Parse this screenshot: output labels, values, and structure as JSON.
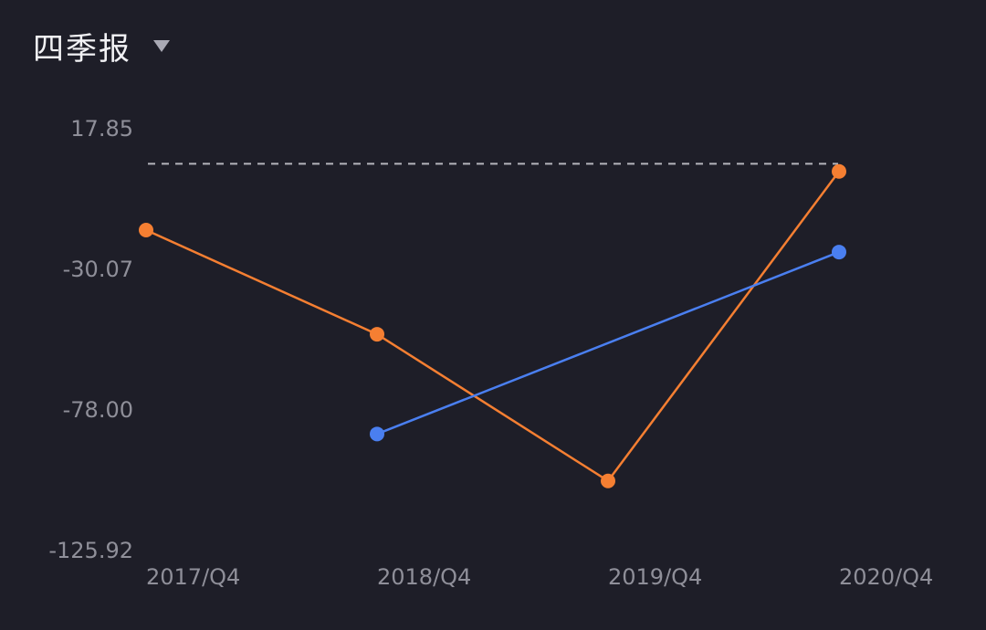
{
  "header": {
    "period_label": "四季报",
    "dropdown_icon": "triangle-down-icon"
  },
  "chart_data": {
    "type": "line",
    "categories": [
      "2017/Q4",
      "2018/Q4",
      "2019/Q4",
      "2020/Q4"
    ],
    "y_ticks": [
      "17.85",
      "-30.07",
      "-78.00",
      "-125.92"
    ],
    "ylim": [
      -125.92,
      17.85
    ],
    "reference_line": 5.6,
    "series": [
      {
        "color": "#f57f32",
        "values": [
          -17.0,
          -52.5,
          -102.5,
          3.0
        ]
      },
      {
        "color": "#4a7ff0",
        "values": [
          null,
          -86.5,
          null,
          -24.5
        ]
      }
    ],
    "grid": false,
    "legend": "none"
  }
}
